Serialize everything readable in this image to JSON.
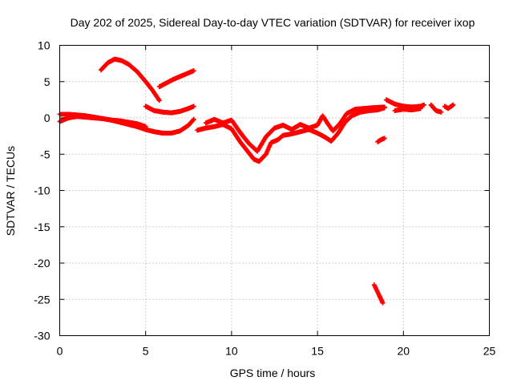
{
  "chart_data": {
    "type": "scatter",
    "title": "Day 202 of 2025, Sidereal Day-to-day VTEC variation (SDTVAR) for receiver ixop",
    "xlabel": "GPS time / hours",
    "ylabel": "SDTVAR / TECUs",
    "xlim": [
      0,
      25
    ],
    "ylim": [
      -30,
      10
    ],
    "xticks": [
      "0",
      "5",
      "10",
      "15",
      "20",
      "25"
    ],
    "yticks": [
      "10",
      "5",
      "0",
      "-5",
      "-10",
      "-15",
      "-20",
      "-25",
      "-30"
    ],
    "grid": true,
    "marker": "+",
    "series": [
      {
        "name": "SDTVAR",
        "color": "#ff0000",
        "segments": [
          [
            [
              0.0,
              -0.5
            ],
            [
              0.5,
              0.0
            ],
            [
              1.0,
              0.2
            ],
            [
              1.5,
              0.1
            ],
            [
              2.0,
              0.0
            ],
            [
              2.5,
              -0.1
            ],
            [
              3.0,
              -0.3
            ],
            [
              3.5,
              -0.6
            ],
            [
              4.0,
              -0.9
            ],
            [
              4.5,
              -1.2
            ],
            [
              5.0,
              -1.6
            ],
            [
              5.5,
              -1.9
            ],
            [
              6.0,
              -2.1
            ],
            [
              6.5,
              -2.1
            ],
            [
              7.0,
              -1.8
            ],
            [
              7.5,
              -1.0
            ],
            [
              7.8,
              -0.2
            ]
          ],
          [
            [
              0.0,
              0.5
            ],
            [
              0.5,
              0.5
            ],
            [
              1.0,
              0.4
            ],
            [
              1.5,
              0.3
            ],
            [
              2.0,
              0.1
            ],
            [
              2.5,
              -0.1
            ],
            [
              3.0,
              -0.3
            ],
            [
              3.5,
              -0.4
            ],
            [
              4.0,
              -0.6
            ],
            [
              4.5,
              -0.8
            ],
            [
              5.0,
              -1.2
            ]
          ],
          [
            [
              2.4,
              6.6
            ],
            [
              2.8,
              7.6
            ],
            [
              3.2,
              8.1
            ],
            [
              3.6,
              7.9
            ],
            [
              4.0,
              7.4
            ],
            [
              4.5,
              6.4
            ],
            [
              5.0,
              5.0
            ],
            [
              5.4,
              3.8
            ],
            [
              5.8,
              2.4
            ]
          ],
          [
            [
              5.8,
              4.3
            ],
            [
              6.2,
              4.8
            ],
            [
              6.6,
              5.3
            ],
            [
              7.0,
              5.7
            ],
            [
              7.5,
              6.2
            ],
            [
              7.8,
              6.5
            ]
          ],
          [
            [
              5.0,
              1.6
            ],
            [
              5.5,
              1.0
            ],
            [
              6.0,
              0.8
            ],
            [
              6.5,
              0.7
            ],
            [
              7.0,
              0.9
            ],
            [
              7.5,
              1.3
            ],
            [
              7.8,
              1.6
            ]
          ],
          [
            [
              8.0,
              -1.7
            ],
            [
              8.5,
              -1.4
            ],
            [
              9.0,
              -1.2
            ],
            [
              9.5,
              -0.9
            ],
            [
              10.0,
              -1.5
            ],
            [
              10.5,
              -3.3
            ],
            [
              11.0,
              -4.8
            ],
            [
              11.3,
              -5.7
            ],
            [
              11.6,
              -6.0
            ],
            [
              12.0,
              -5.0
            ],
            [
              12.3,
              -3.4
            ],
            [
              12.7,
              -3.0
            ],
            [
              13.0,
              -2.4
            ],
            [
              13.5,
              -2.2
            ],
            [
              14.0,
              -1.9
            ],
            [
              14.5,
              -1.6
            ],
            [
              15.0,
              -2.1
            ],
            [
              15.4,
              -2.6
            ],
            [
              15.8,
              -3.2
            ],
            [
              16.2,
              -2.1
            ],
            [
              16.6,
              -0.6
            ],
            [
              17.0,
              0.3
            ],
            [
              17.5,
              0.8
            ],
            [
              18.0,
              1.0
            ],
            [
              18.5,
              1.1
            ],
            [
              18.9,
              1.4
            ]
          ],
          [
            [
              8.5,
              -0.7
            ],
            [
              9.0,
              -0.2
            ],
            [
              9.5,
              -0.7
            ],
            [
              10.0,
              -0.3
            ],
            [
              10.5,
              -2.0
            ],
            [
              11.0,
              -3.5
            ],
            [
              11.5,
              -4.6
            ],
            [
              12.0,
              -2.6
            ],
            [
              12.5,
              -1.4
            ],
            [
              13.0,
              -1.0
            ],
            [
              13.5,
              -1.6
            ],
            [
              14.0,
              -0.9
            ],
            [
              14.5,
              -1.4
            ],
            [
              15.0,
              -1.0
            ],
            [
              15.3,
              0.3
            ],
            [
              15.6,
              -0.8
            ],
            [
              15.9,
              -1.8
            ],
            [
              16.3,
              -0.8
            ],
            [
              16.7,
              0.6
            ],
            [
              17.2,
              1.2
            ],
            [
              17.7,
              1.3
            ],
            [
              18.2,
              1.4
            ],
            [
              18.9,
              1.5
            ]
          ],
          [
            [
              18.5,
              -3.3
            ],
            [
              18.7,
              -3.0
            ],
            [
              18.9,
              -2.8
            ]
          ],
          [
            [
              18.3,
              -23.0
            ],
            [
              18.6,
              -24.5
            ],
            [
              18.8,
              -25.5
            ]
          ],
          [
            [
              19.0,
              2.5
            ],
            [
              19.5,
              1.9
            ],
            [
              20.0,
              1.6
            ],
            [
              20.5,
              1.5
            ],
            [
              21.0,
              1.6
            ],
            [
              21.2,
              1.8
            ]
          ],
          [
            [
              19.5,
              1.0
            ],
            [
              20.0,
              1.2
            ],
            [
              20.5,
              1.1
            ],
            [
              21.0,
              1.3
            ]
          ],
          [
            [
              21.6,
              1.8
            ],
            [
              21.9,
              1.0
            ],
            [
              22.2,
              0.8
            ]
          ],
          [
            [
              22.4,
              1.6
            ],
            [
              22.6,
              1.3
            ],
            [
              22.9,
              1.8
            ]
          ]
        ]
      }
    ]
  }
}
